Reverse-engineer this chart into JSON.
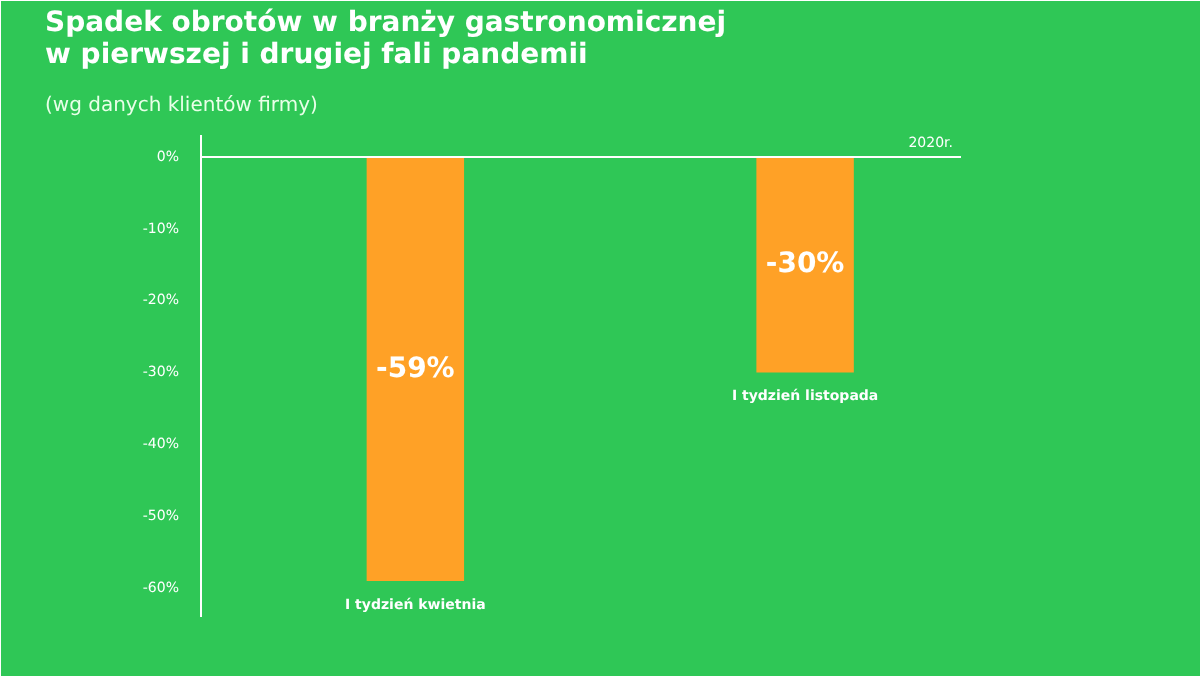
{
  "chart_data": {
    "type": "bar",
    "title": "Spadek obrotów w branży gastronomicznej\nw pierwszej i drugiej fali pandemii",
    "subtitle": "(wg danych klientów firmy)",
    "categories": [
      "I tydzień kwietnia",
      "I tydzień listopada"
    ],
    "values": [
      -59,
      -30
    ],
    "color": "#ffa126",
    "value_labels": [
      "-59%",
      "-30%"
    ],
    "ylim": [
      -64,
      3
    ],
    "yticks": [
      {
        "value": 0,
        "label": "0%"
      },
      {
        "value": -10,
        "label": "-10%"
      },
      {
        "value": -20,
        "label": "-20%"
      },
      {
        "value": -30,
        "label": "-30%"
      },
      {
        "value": -40,
        "label": "-40%"
      },
      {
        "value": -50,
        "label": "-50%"
      },
      {
        "value": -60,
        "label": "-60%"
      }
    ],
    "annotations": [
      "2020r."
    ]
  }
}
